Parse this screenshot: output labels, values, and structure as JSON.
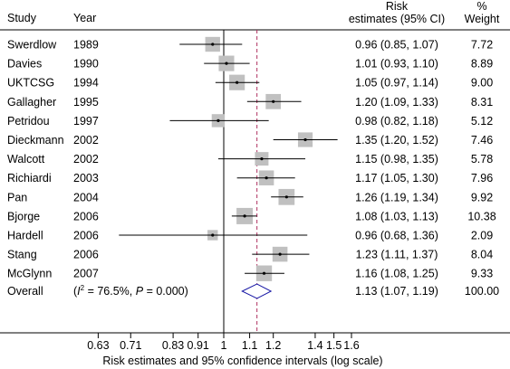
{
  "chart_data": {
    "type": "forest",
    "x_scale": "log",
    "null_value": 1,
    "pooled_dashed_value": 1.13,
    "columns": {
      "study": "Study",
      "year": "Year",
      "estimate_line1": "Risk",
      "estimate_line2": "estimates (95% CI)",
      "weight_line1": "%",
      "weight_line2": "Weight"
    },
    "studies": [
      {
        "study": "Swerdlow",
        "year": "1989",
        "est": 0.96,
        "lo": 0.85,
        "hi": 1.07,
        "ci_text": "0.96 (0.85, 1.07)",
        "weight": 7.72,
        "weight_text": "7.72"
      },
      {
        "study": "Davies",
        "year": "1990",
        "est": 1.01,
        "lo": 0.93,
        "hi": 1.1,
        "ci_text": "1.01 (0.93, 1.10)",
        "weight": 8.89,
        "weight_text": "8.89"
      },
      {
        "study": "UKTCSG",
        "year": "1994",
        "est": 1.05,
        "lo": 0.97,
        "hi": 1.14,
        "ci_text": "1.05 (0.97, 1.14)",
        "weight": 9.0,
        "weight_text": "9.00"
      },
      {
        "study": "Gallagher",
        "year": "1995",
        "est": 1.2,
        "lo": 1.09,
        "hi": 1.33,
        "ci_text": "1.20 (1.09, 1.33)",
        "weight": 8.31,
        "weight_text": "8.31"
      },
      {
        "study": "Petridou",
        "year": "1997",
        "est": 0.98,
        "lo": 0.82,
        "hi": 1.18,
        "ci_text": "0.98 (0.82, 1.18)",
        "weight": 5.12,
        "weight_text": "5.12"
      },
      {
        "study": "Dieckmann",
        "year": "2002",
        "est": 1.35,
        "lo": 1.2,
        "hi": 1.52,
        "ci_text": "1.35 (1.20, 1.52)",
        "weight": 7.46,
        "weight_text": "7.46"
      },
      {
        "study": "Walcott",
        "year": "2002",
        "est": 1.15,
        "lo": 0.98,
        "hi": 1.35,
        "ci_text": "1.15 (0.98, 1.35)",
        "weight": 5.78,
        "weight_text": "5.78"
      },
      {
        "study": "Richiardi",
        "year": "2003",
        "est": 1.17,
        "lo": 1.05,
        "hi": 1.3,
        "ci_text": "1.17 (1.05, 1.30)",
        "weight": 7.96,
        "weight_text": "7.96"
      },
      {
        "study": "Pan",
        "year": "2004",
        "est": 1.26,
        "lo": 1.19,
        "hi": 1.34,
        "ci_text": "1.26 (1.19, 1.34)",
        "weight": 9.92,
        "weight_text": "9.92"
      },
      {
        "study": "Bjorge",
        "year": "2006",
        "est": 1.08,
        "lo": 1.03,
        "hi": 1.13,
        "ci_text": "1.08 (1.03, 1.13)",
        "weight": 10.38,
        "weight_text": "10.38"
      },
      {
        "study": "Hardell",
        "year": "2006",
        "est": 0.96,
        "lo": 0.68,
        "hi": 1.36,
        "ci_text": "0.96 (0.68, 1.36)",
        "weight": 2.09,
        "weight_text": "2.09"
      },
      {
        "study": "Stang",
        "year": "2006",
        "est": 1.23,
        "lo": 1.11,
        "hi": 1.37,
        "ci_text": "1.23 (1.11, 1.37)",
        "weight": 8.04,
        "weight_text": "8.04"
      },
      {
        "study": "McGlynn",
        "year": "2007",
        "est": 1.16,
        "lo": 1.08,
        "hi": 1.25,
        "ci_text": "1.16 (1.08, 1.25)",
        "weight": 9.33,
        "weight_text": "9.33"
      }
    ],
    "overall": {
      "label": "Overall",
      "i2_prefix": "(",
      "i2_symbol": "I",
      "i2_sup": "2",
      "i2_value": " = 76.5%, ",
      "p_symbol": "P",
      "p_value": " = 0.000)",
      "est": 1.13,
      "lo": 1.07,
      "hi": 1.19,
      "ci_text": "1.13 (1.07, 1.19)",
      "weight_text": "100.00"
    },
    "x_ticks": [
      {
        "value": 0.63,
        "label": "0.63"
      },
      {
        "value": 0.71,
        "label": "0.71"
      },
      {
        "value": 0.83,
        "label": "0.83"
      },
      {
        "value": 0.91,
        "label": "0.91"
      },
      {
        "value": 1,
        "label": "1"
      },
      {
        "value": 1.1,
        "label": "1.1"
      },
      {
        "value": 1.2,
        "label": "1.2"
      },
      {
        "value": 1.4,
        "label": "1.4"
      },
      {
        "value": 1.5,
        "label": "1.5"
      },
      {
        "value": 1.6,
        "label": "1.6"
      }
    ],
    "xlabel": "Risk estimates and 95% confidence intervals (log scale)",
    "colors": {
      "box": "#c0c0c0",
      "line": "#000000",
      "null_line": "#000000",
      "pooled_dashed": "#b03060",
      "diamond": "#1a1aa6"
    }
  }
}
